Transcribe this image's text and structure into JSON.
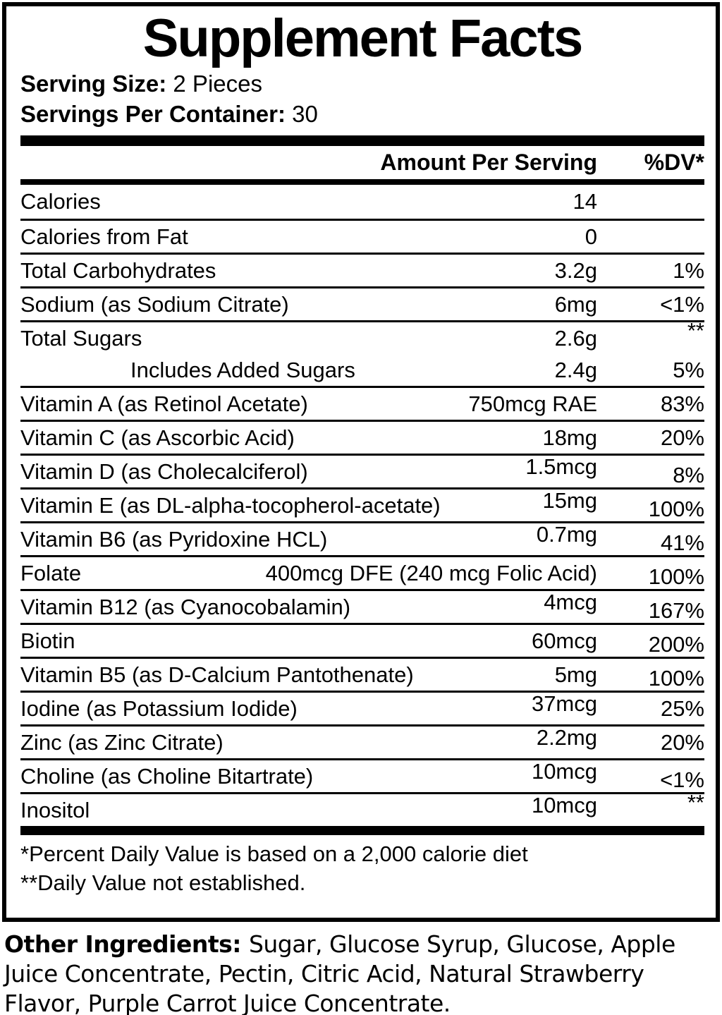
{
  "panel": {
    "title": "Supplement Facts",
    "serving_size_label": "Serving Size:",
    "serving_size_value": "2 Pieces",
    "servings_per_container_label": "Servings Per Container:",
    "servings_per_container_value": "30",
    "header": {
      "amount": "Amount Per Serving",
      "dv": "%DV*"
    },
    "rows": [
      {
        "label": "Calories",
        "amount": "14",
        "dv": ""
      },
      {
        "label": "Calories from Fat",
        "amount": "0",
        "dv": ""
      },
      {
        "label": "Total Carbohydrates",
        "amount": "3.2g",
        "dv": "1%"
      },
      {
        "label": "Sodium (as Sodium Citrate)",
        "amount": "6mg",
        "dv": "<1%"
      },
      {
        "label": "Total Sugars",
        "amount": "2.6g",
        "dv": "**"
      },
      {
        "label": "Includes Added Sugars",
        "amount": "2.4g",
        "dv": "5%"
      },
      {
        "label": "Vitamin A (as Retinol Acetate)",
        "amount": "750mcg RAE",
        "dv": "83%"
      },
      {
        "label": "Vitamin C (as Ascorbic Acid)",
        "amount": "18mg",
        "dv": "20%"
      },
      {
        "label": "Vitamin D (as Cholecalciferol)",
        "amount": "1.5mcg",
        "dv": "8%"
      },
      {
        "label": "Vitamin E (as DL-alpha-tocopherol-acetate)",
        "amount": "15mg",
        "dv": "100%"
      },
      {
        "label": "Vitamin B6 (as Pyridoxine HCL)",
        "amount": "0.7mg",
        "dv": "41%"
      },
      {
        "label": "Folate",
        "amount": "400mcg DFE (240 mcg Folic Acid)",
        "dv": "100%"
      },
      {
        "label": "Vitamin B12 (as Cyanocobalamin)",
        "amount": "4mcg",
        "dv": "167%"
      },
      {
        "label": "Biotin",
        "amount": "60mcg",
        "dv": "200%"
      },
      {
        "label": "Vitamin B5 (as D-Calcium Pantothenate)",
        "amount": "5mg",
        "dv": "100%"
      },
      {
        "label": "Iodine (as Potassium Iodide)",
        "amount": "37mcg",
        "dv": "25%"
      },
      {
        "label": "Zinc (as Zinc Citrate)",
        "amount": "2.2mg",
        "dv": "20%"
      },
      {
        "label": "Choline (as Choline Bitartrate)",
        "amount": "10mcg",
        "dv": "<1%"
      },
      {
        "label": "Inositol",
        "amount": "10mcg",
        "dv": "**"
      }
    ],
    "footnotes": [
      "*Percent Daily Value is based on a 2,000 calorie diet",
      "**Daily Value not established."
    ]
  },
  "other_ingredients": {
    "label": "Other Ingredients:",
    "text": "Sugar, Glucose Syrup, Glucose, Apple Juice Concentrate, Pectin, Citric Acid, Natural Strawberry Flavor, Purple Carrot Juice Concentrate."
  },
  "colors": {
    "ink": "#000000",
    "paper": "#ffffff"
  }
}
